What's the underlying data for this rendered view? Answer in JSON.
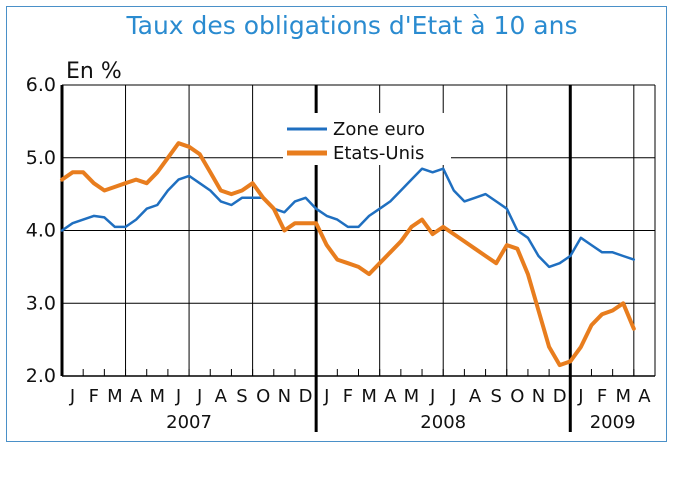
{
  "chart_data": {
    "type": "line",
    "title": "Taux des obligations d'Etat à 10 ans",
    "unit_label": "En %",
    "ylim": [
      2.0,
      6.0
    ],
    "yticks": [
      "6.0",
      "5.0",
      "4.0",
      "3.0",
      "2.0"
    ],
    "grid": true,
    "legend": "top-center",
    "month_labels": [
      "J",
      "F",
      "M",
      "A",
      "M",
      "J",
      "J",
      "A",
      "S",
      "O",
      "N",
      "D",
      "J",
      "F",
      "M",
      "A",
      "M",
      "J",
      "J",
      "A",
      "S",
      "O",
      "N",
      "D",
      "J",
      "F",
      "M",
      "A"
    ],
    "years": [
      {
        "label": "2007",
        "start_month": 0,
        "end_month": 12
      },
      {
        "label": "2008",
        "start_month": 12,
        "end_month": 24
      },
      {
        "label": "2009",
        "start_month": 24,
        "end_month": 28
      }
    ],
    "x_unit": "months since January 2007",
    "series": [
      {
        "name": "Zone euro",
        "color": "#1f6fc0",
        "points": [
          [
            0,
            4.0
          ],
          [
            0.5,
            4.1
          ],
          [
            1,
            4.15
          ],
          [
            1.5,
            4.2
          ],
          [
            2,
            4.18
          ],
          [
            2.5,
            4.05
          ],
          [
            3,
            4.05
          ],
          [
            3.5,
            4.15
          ],
          [
            4,
            4.3
          ],
          [
            4.5,
            4.35
          ],
          [
            5,
            4.55
          ],
          [
            5.5,
            4.7
          ],
          [
            6,
            4.75
          ],
          [
            6.5,
            4.65
          ],
          [
            7,
            4.55
          ],
          [
            7.5,
            4.4
          ],
          [
            8,
            4.35
          ],
          [
            8.5,
            4.45
          ],
          [
            9,
            4.45
          ],
          [
            9.5,
            4.45
          ],
          [
            10,
            4.3
          ],
          [
            10.5,
            4.25
          ],
          [
            11,
            4.4
          ],
          [
            11.5,
            4.45
          ],
          [
            12,
            4.3
          ],
          [
            12.5,
            4.2
          ],
          [
            13,
            4.15
          ],
          [
            13.5,
            4.05
          ],
          [
            14,
            4.05
          ],
          [
            14.5,
            4.2
          ],
          [
            15,
            4.3
          ],
          [
            15.5,
            4.4
          ],
          [
            16,
            4.55
          ],
          [
            16.5,
            4.7
          ],
          [
            17,
            4.85
          ],
          [
            17.5,
            4.8
          ],
          [
            18,
            4.85
          ],
          [
            18.5,
            4.55
          ],
          [
            19,
            4.4
          ],
          [
            19.5,
            4.45
          ],
          [
            20,
            4.5
          ],
          [
            20.5,
            4.4
          ],
          [
            21,
            4.3
          ],
          [
            21.5,
            4.0
          ],
          [
            22,
            3.9
          ],
          [
            22.5,
            3.65
          ],
          [
            23,
            3.5
          ],
          [
            23.5,
            3.55
          ],
          [
            24,
            3.65
          ],
          [
            24.5,
            3.9
          ],
          [
            25,
            3.8
          ],
          [
            25.5,
            3.7
          ],
          [
            26,
            3.7
          ],
          [
            26.5,
            3.65
          ],
          [
            27,
            3.6
          ]
        ]
      },
      {
        "name": "Etats-Unis",
        "color": "#e87d1e",
        "points": [
          [
            0,
            4.7
          ],
          [
            0.5,
            4.8
          ],
          [
            1,
            4.8
          ],
          [
            1.5,
            4.65
          ],
          [
            2,
            4.55
          ],
          [
            2.5,
            4.6
          ],
          [
            3,
            4.65
          ],
          [
            3.5,
            4.7
          ],
          [
            4,
            4.65
          ],
          [
            4.5,
            4.8
          ],
          [
            5,
            5.0
          ],
          [
            5.5,
            5.2
          ],
          [
            6,
            5.15
          ],
          [
            6.5,
            5.05
          ],
          [
            7,
            4.8
          ],
          [
            7.5,
            4.55
          ],
          [
            8,
            4.5
          ],
          [
            8.5,
            4.55
          ],
          [
            9,
            4.65
          ],
          [
            9.5,
            4.45
          ],
          [
            10,
            4.3
          ],
          [
            10.5,
            4.0
          ],
          [
            11,
            4.1
          ],
          [
            11.5,
            4.1
          ],
          [
            12,
            4.1
          ],
          [
            12.5,
            3.8
          ],
          [
            13,
            3.6
          ],
          [
            13.5,
            3.55
          ],
          [
            14,
            3.5
          ],
          [
            14.5,
            3.4
          ],
          [
            15,
            3.55
          ],
          [
            15.5,
            3.7
          ],
          [
            16,
            3.85
          ],
          [
            16.5,
            4.05
          ],
          [
            17,
            4.15
          ],
          [
            17.5,
            3.95
          ],
          [
            18,
            4.05
          ],
          [
            18.5,
            3.95
          ],
          [
            19,
            3.85
          ],
          [
            19.5,
            3.75
          ],
          [
            20,
            3.65
          ],
          [
            20.5,
            3.55
          ],
          [
            21,
            3.8
          ],
          [
            21.5,
            3.75
          ],
          [
            22,
            3.4
          ],
          [
            22.5,
            2.9
          ],
          [
            23,
            2.4
          ],
          [
            23.5,
            2.15
          ],
          [
            24,
            2.2
          ],
          [
            24.5,
            2.4
          ],
          [
            25,
            2.7
          ],
          [
            25.5,
            2.85
          ],
          [
            26,
            2.9
          ],
          [
            26.5,
            3.0
          ],
          [
            27,
            2.65
          ]
        ]
      }
    ]
  }
}
